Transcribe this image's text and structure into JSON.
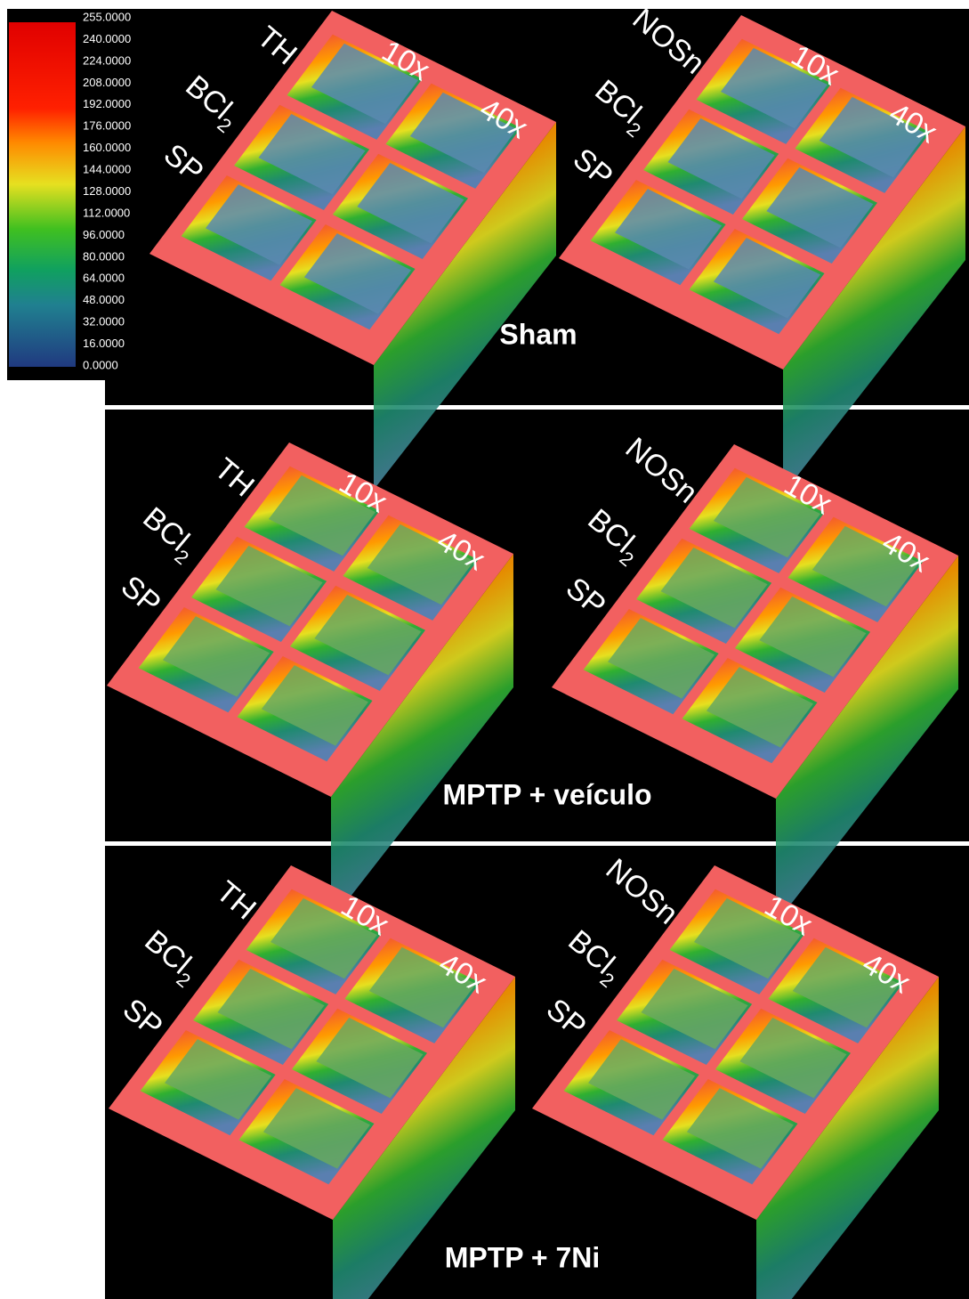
{
  "colorbar": {
    "labels": [
      "255.0000",
      "240.0000",
      "224.0000",
      "208.0000",
      "192.0000",
      "176.0000",
      "160.0000",
      "144.0000",
      "128.0000",
      "112.0000",
      "96.0000",
      "80.0000",
      "64.0000",
      "48.0000",
      "32.0000",
      "16.0000",
      "0.0000"
    ]
  },
  "panels": [
    {
      "title": "Sham",
      "plots": [
        {
          "marker": "TH",
          "row2": "BCl",
          "row2_sub": "2",
          "row3": "SP",
          "col1": "10x",
          "col2": "40x"
        },
        {
          "marker": "NOSn",
          "row2": "BCl",
          "row2_sub": "2",
          "row3": "SP",
          "col1": "10x",
          "col2": "40x"
        }
      ]
    },
    {
      "title": "MPTP + veículo",
      "plots": [
        {
          "marker": "TH",
          "row2": "BCl",
          "row2_sub": "2",
          "row3": "SP",
          "col1": "10x",
          "col2": "40x"
        },
        {
          "marker": "NOSn",
          "row2": "BCl",
          "row2_sub": "2",
          "row3": "SP",
          "col1": "10x",
          "col2": "40x"
        }
      ]
    },
    {
      "title": "MPTP + 7Ni",
      "plots": [
        {
          "marker": "TH",
          "row2": "BCl",
          "row2_sub": "2",
          "row3": "SP",
          "col1": "10x",
          "col2": "40x"
        },
        {
          "marker": "NOSn",
          "row2": "BCl",
          "row2_sub": "2",
          "row3": "SP",
          "col1": "10x",
          "col2": "40x"
        }
      ]
    }
  ]
}
